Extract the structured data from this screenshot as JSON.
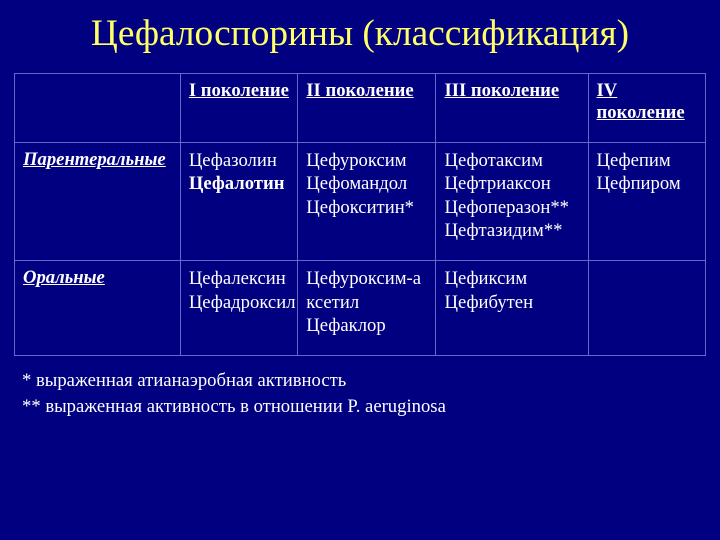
{
  "colors": {
    "background": "#000080",
    "text": "#ffffff",
    "title": "#ffff66",
    "border": "#6666cc"
  },
  "title": {
    "text": "Цефалоспорины (классификация)",
    "fontsize_pt": 28,
    "color": "#ffff66"
  },
  "table": {
    "header_fontsize_pt": 14,
    "cell_fontsize_pt": 14,
    "header": {
      "lead": "",
      "gens": [
        "I поколение",
        "II поколение",
        "III поколение",
        "IV поколение"
      ]
    },
    "rows": [
      {
        "label": "Парентеральные",
        "cells": [
          [
            {
              "t": "Цефазолин",
              "bold": false
            },
            {
              "t": "Цефалотин",
              "bold": true
            }
          ],
          [
            {
              "t": "Цефуроксим",
              "bold": false
            },
            {
              "t": "Цефомандол",
              "bold": false
            },
            {
              "t": "Цефокситин*",
              "bold": false
            }
          ],
          [
            {
              "t": "Цефотаксим",
              "bold": false
            },
            {
              "t": "Цефтриаксон",
              "bold": false
            },
            {
              "t": "Цефоперазон**",
              "bold": false
            },
            {
              "t": "Цефтазидим**",
              "bold": false
            }
          ],
          [
            {
              "t": "Цефепим",
              "bold": false
            },
            {
              "t": "Цефпиром",
              "bold": false
            }
          ]
        ]
      },
      {
        "label": "Оральные",
        "cells": [
          [
            {
              "t": "Цефалексин",
              "bold": false
            },
            {
              "t": "Цефадроксил",
              "bold": false
            }
          ],
          [
            {
              "t": "Цефуроксим-а",
              "bold": false
            },
            {
              "t": "ксетил",
              "bold": false
            },
            {
              "t": "Цефаклор",
              "bold": false
            }
          ],
          [
            {
              "t": "Цефиксим",
              "bold": false
            },
            {
              "t": "Цефибутен",
              "bold": false
            }
          ],
          []
        ]
      }
    ]
  },
  "footnotes": {
    "fontsize_pt": 14,
    "lines": [
      "*  выраженная атианаэробная активность",
      "** выраженная активность в отношении P. aeruginosa"
    ]
  }
}
